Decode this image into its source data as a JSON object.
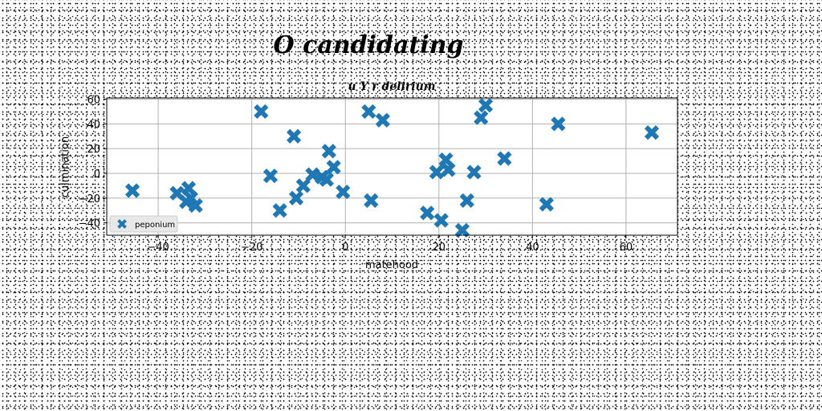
{
  "figure": {
    "suptitle": "O candidating"
  },
  "colors": {
    "series": "#1f77b4",
    "grid": "#b0b0b0",
    "axes": "#000000"
  },
  "chart_data": {
    "type": "scatter",
    "title": "u Y r delirium",
    "xlabel": "matehood",
    "ylabel": "culmination",
    "xlim": [
      -51,
      71
    ],
    "ylim": [
      -50,
      61
    ],
    "xticks": [
      -40,
      -20,
      0,
      20,
      40,
      60
    ],
    "xtick_labels": [
      "−40",
      "−20",
      "0",
      "20",
      "40",
      "60"
    ],
    "yticks": [
      -40,
      -20,
      0,
      20,
      40,
      60
    ],
    "ytick_labels": [
      "−40",
      "−20",
      "0",
      "20",
      "40",
      "60"
    ],
    "grid": true,
    "legend": {
      "location": "lower-left"
    },
    "marker": "X",
    "series": [
      {
        "name": "peponium",
        "x": [
          -45.5,
          -36,
          -34,
          -33.5,
          -33,
          -32,
          -18,
          -16,
          -14,
          -11,
          -10.5,
          -9,
          -7,
          -5,
          -4,
          -3.5,
          -2.5,
          -0.5,
          5,
          5.5,
          8,
          17.5,
          19.5,
          20.5,
          21.5,
          22,
          25,
          26,
          27.5,
          29,
          30,
          34,
          43,
          45.5,
          65.5
        ],
        "y": [
          -14,
          -16,
          -23,
          -12,
          -20,
          -26,
          50,
          -2,
          -30,
          30,
          -20,
          -10,
          -1,
          -3,
          -5,
          18,
          5,
          -15,
          50,
          -22,
          43,
          -32,
          1,
          -38,
          11,
          3,
          -46,
          -22,
          1,
          45,
          55,
          12,
          -25,
          40,
          33
        ]
      }
    ]
  }
}
